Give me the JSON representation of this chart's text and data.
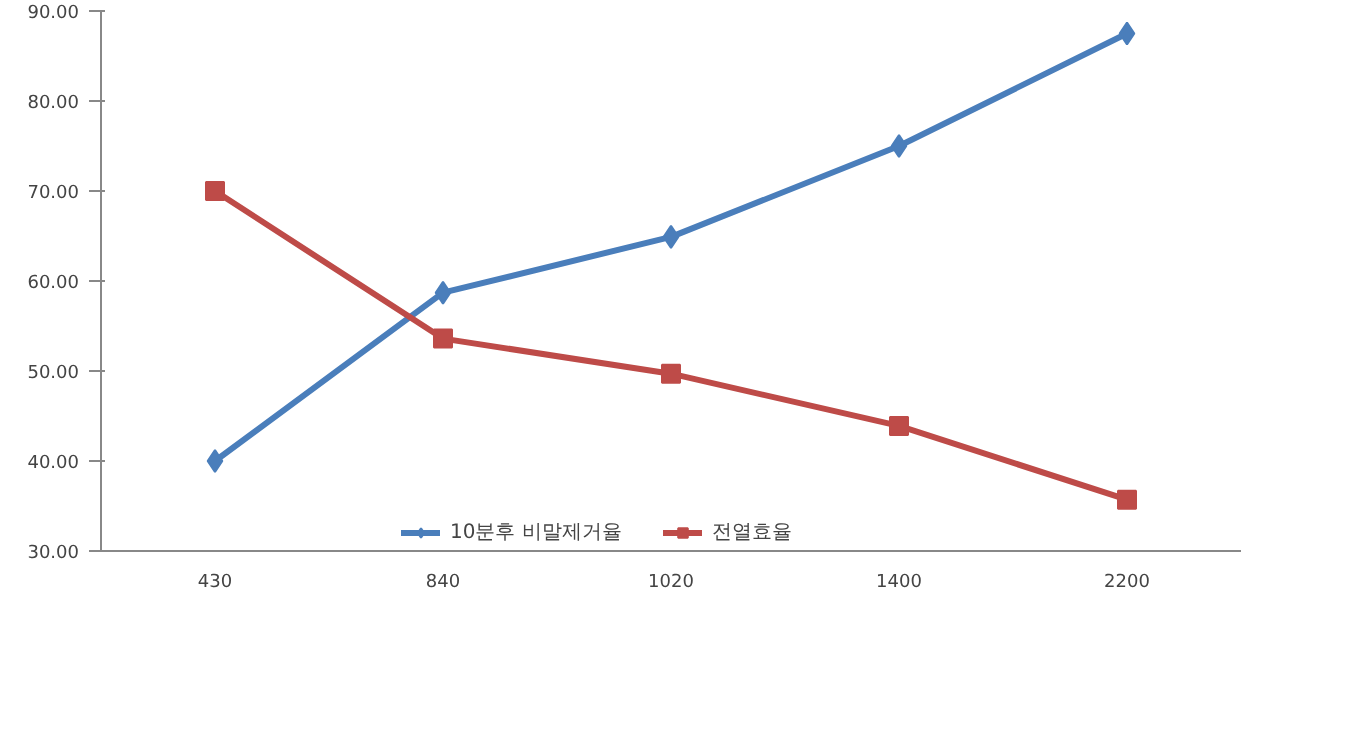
{
  "chart_data": {
    "type": "line",
    "categories": [
      "430",
      "840",
      "1020",
      "1400",
      "2200"
    ],
    "ylim": [
      30,
      90
    ],
    "yticks": [
      {
        "value": 30,
        "label": "30.00"
      },
      {
        "value": 40,
        "label": "40.00"
      },
      {
        "value": 50,
        "label": "50.00"
      },
      {
        "value": 60,
        "label": "60.00"
      },
      {
        "value": 70,
        "label": "70.00"
      },
      {
        "value": 80,
        "label": "80.00"
      },
      {
        "value": 90,
        "label": "90.00"
      }
    ],
    "grid": false,
    "legend": "bottom",
    "line_style": "solid",
    "series": [
      {
        "name": "10분후 비말제거율",
        "color": "#4a7ebb",
        "marker": "diamond",
        "values": [
          40.0,
          58.7,
          64.9,
          75.0,
          87.5
        ]
      },
      {
        "name": "전열효율",
        "color": "#be4b48",
        "marker": "square",
        "values": [
          70.0,
          53.6,
          49.7,
          43.9,
          35.7
        ]
      }
    ]
  }
}
